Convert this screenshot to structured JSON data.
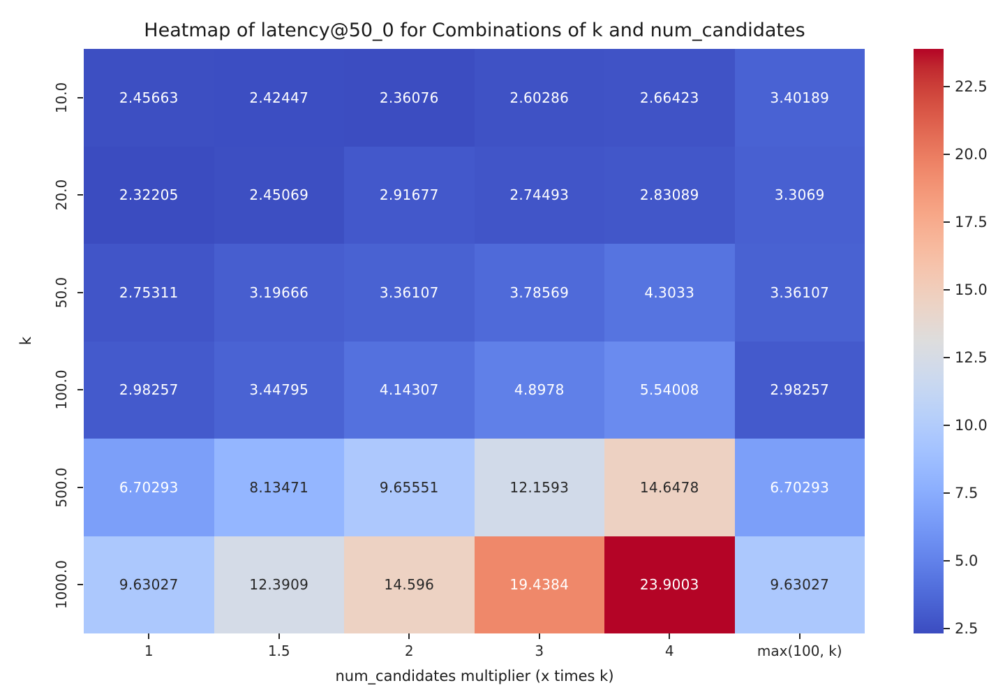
{
  "chart_data": {
    "type": "heatmap",
    "title": "Heatmap of latency@50_0 for Combinations of k and num_candidates",
    "xlabel": "num_candidates multiplier (x times k)",
    "ylabel": "k",
    "x_tick_labels": [
      "1",
      "1.5",
      "2",
      "3",
      "4",
      "max(100, k)"
    ],
    "y_tick_labels": [
      "10.0",
      "20.0",
      "50.0",
      "100.0",
      "500.0",
      "1000.0"
    ],
    "cell_values": [
      [
        "2.45663",
        "2.42447",
        "2.36076",
        "2.60286",
        "2.66423",
        "3.40189"
      ],
      [
        "2.32205",
        "2.45069",
        "2.91677",
        "2.74493",
        "2.83089",
        "3.3069"
      ],
      [
        "2.75311",
        "3.19666",
        "3.36107",
        "3.78569",
        "4.3033",
        "3.36107"
      ],
      [
        "2.98257",
        "3.44795",
        "4.14307",
        "4.8978",
        "5.54008",
        "2.98257"
      ],
      [
        "6.70293",
        "8.13471",
        "9.65551",
        "12.1593",
        "14.6478",
        "6.70293"
      ],
      [
        "9.63027",
        "12.3909",
        "14.596",
        "19.4384",
        "23.9003",
        "9.63027"
      ]
    ],
    "colormap": "coolwarm",
    "colorbar_tick_labels": [
      "2.5",
      "5.0",
      "7.5",
      "10.0",
      "12.5",
      "15.0",
      "17.5",
      "20.0",
      "22.5"
    ],
    "colorbar_tick_values": [
      2.5,
      5.0,
      7.5,
      10.0,
      12.5,
      15.0,
      17.5,
      20.0,
      22.5
    ],
    "grid": false,
    "legend_position": "colorbar-right",
    "colors": {
      "annotation_dark": "#262626",
      "annotation_light": "#ffffff",
      "min_cell": "#3b4cc0",
      "max_cell": "#b40426",
      "background": "#ffffff"
    }
  }
}
